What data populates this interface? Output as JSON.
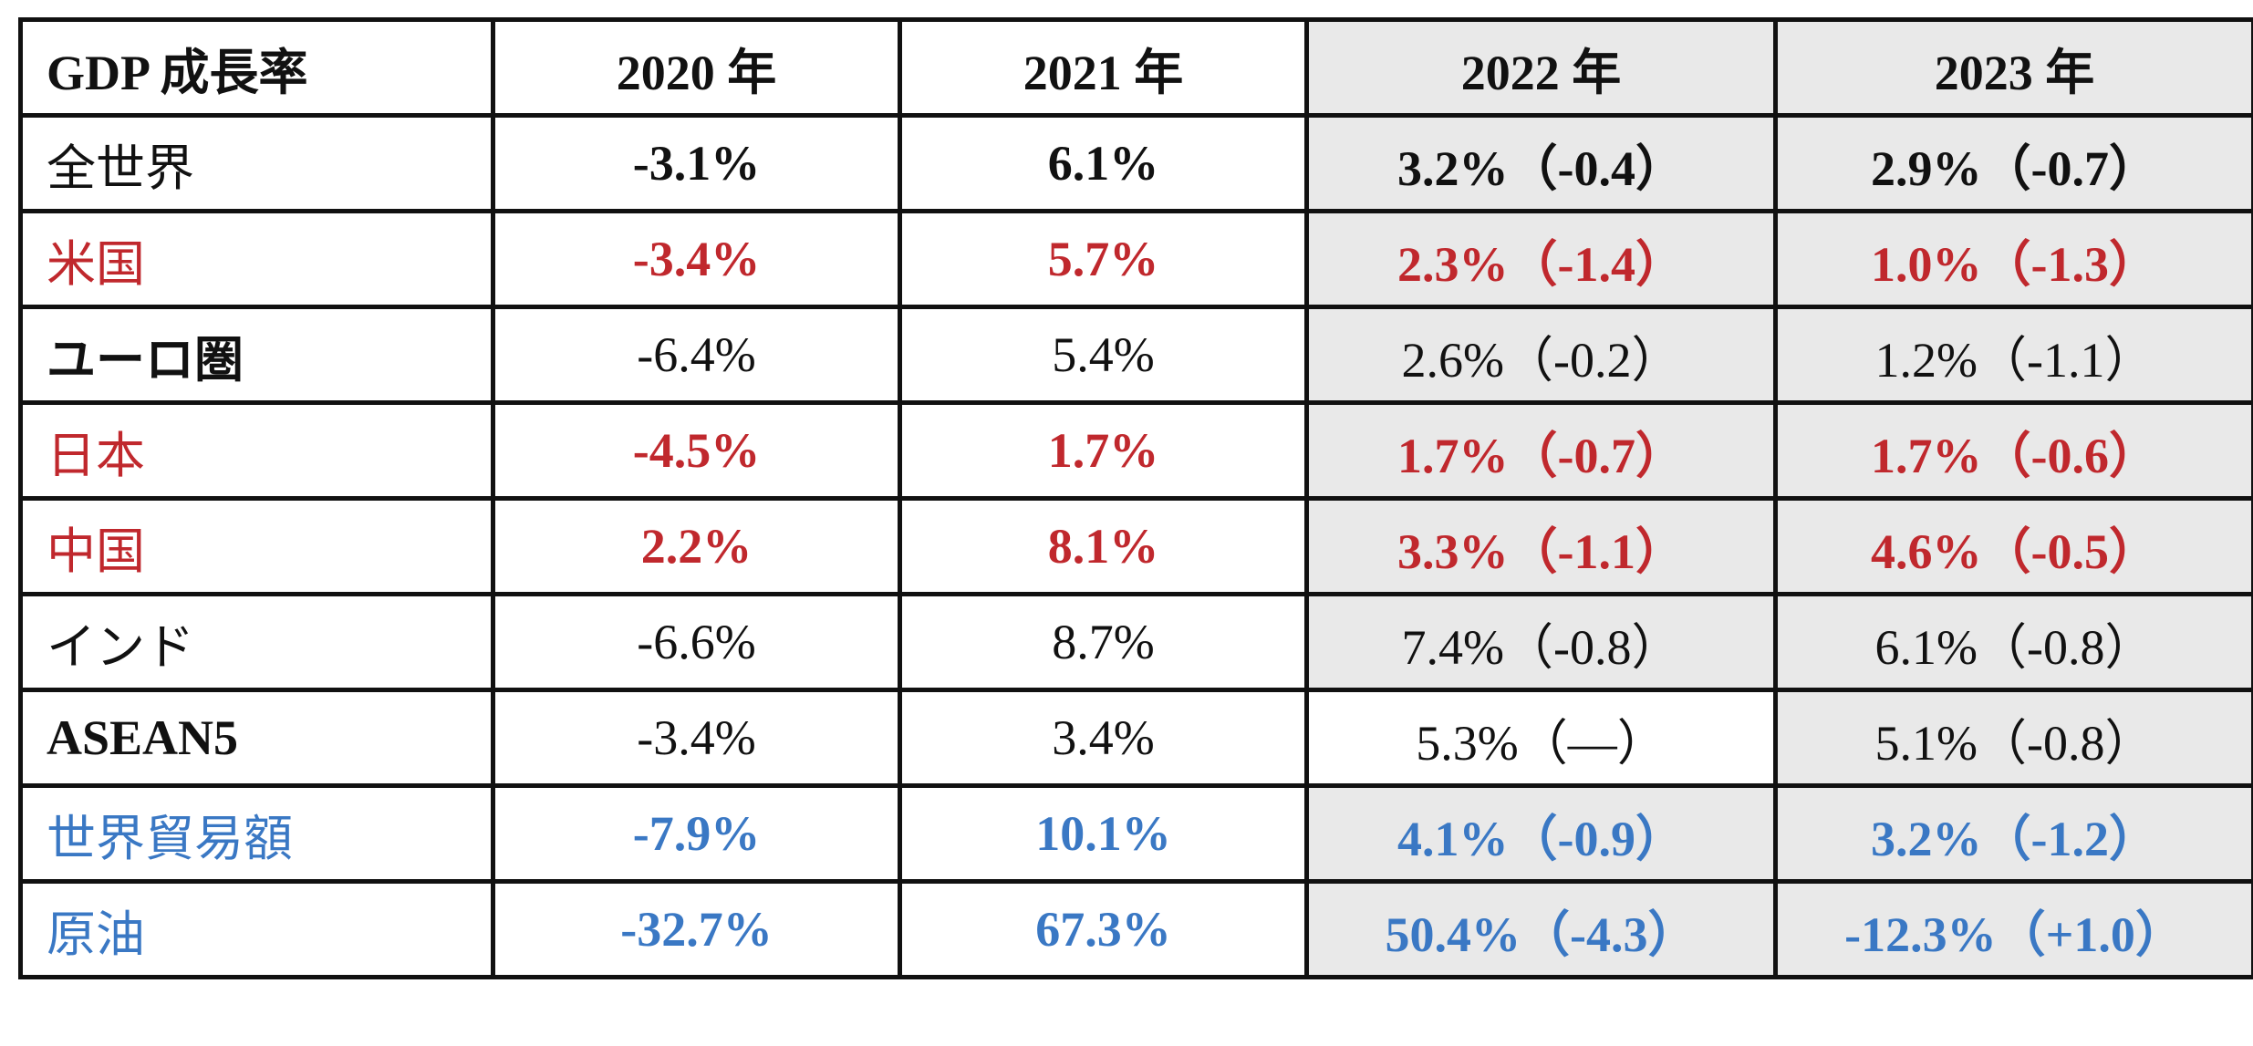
{
  "table": {
    "header": {
      "corner": "GDP 成長率",
      "years": [
        "2020 年",
        "2021 年",
        "2022 年",
        "2023 年"
      ]
    },
    "rows": [
      {
        "label": "全世界",
        "values": [
          "-3.1%",
          "6.1%",
          "3.2%（-0.4）",
          "2.9%（-0.7）"
        ],
        "color": "#111111",
        "weight": "bold-values"
      },
      {
        "label": "米国",
        "values": [
          "-3.4%",
          "5.7%",
          "2.3%（-1.4）",
          "1.0%（-1.3）"
        ],
        "color": "#c0282d",
        "weight": "bold"
      },
      {
        "label": "ユーロ圏",
        "values": [
          "-6.4%",
          "5.4%",
          "2.6%（-0.2）",
          "1.2%（-1.1）"
        ],
        "color": "#111111",
        "weight": "normal"
      },
      {
        "label": "日本",
        "values": [
          "-4.5%",
          "1.7%",
          "1.7%（-0.7）",
          "1.7%（-0.6）"
        ],
        "color": "#c0282d",
        "weight": "bold"
      },
      {
        "label": "中国",
        "values": [
          "2.2%",
          "8.1%",
          "3.3%（-1.1）",
          "4.6%（-0.5）"
        ],
        "color": "#c0282d",
        "weight": "bold"
      },
      {
        "label": "インド",
        "values": [
          "-6.6%",
          "8.7%",
          "7.4%（-0.8）",
          "6.1%（-0.8）"
        ],
        "color": "#111111",
        "weight": "normal"
      },
      {
        "label": "ASEAN5",
        "values": [
          "-3.4%",
          "3.4%",
          "5.3%（—）",
          "5.1%（-0.8）"
        ],
        "color": "#111111",
        "weight": "bold-label"
      },
      {
        "label": "世界貿易額",
        "values": [
          "-7.9%",
          "10.1%",
          "4.1%（-0.9）",
          "3.2%（-1.2）"
        ],
        "color": "#3a78c4",
        "weight": "bold"
      },
      {
        "label": "原油",
        "values": [
          "-32.7%",
          "67.3%",
          "50.4%（-4.3）",
          "-12.3%（+1.0）"
        ],
        "color": "#3a78c4",
        "weight": "bold"
      }
    ]
  }
}
